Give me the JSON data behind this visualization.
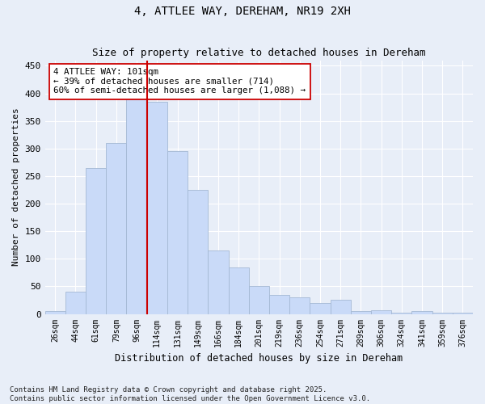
{
  "title": "4, ATTLEE WAY, DEREHAM, NR19 2XH",
  "subtitle": "Size of property relative to detached houses in Dereham",
  "xlabel": "Distribution of detached houses by size in Dereham",
  "ylabel": "Number of detached properties",
  "categories": [
    "26sqm",
    "44sqm",
    "61sqm",
    "79sqm",
    "96sqm",
    "114sqm",
    "131sqm",
    "149sqm",
    "166sqm",
    "184sqm",
    "201sqm",
    "219sqm",
    "236sqm",
    "254sqm",
    "271sqm",
    "289sqm",
    "306sqm",
    "324sqm",
    "341sqm",
    "359sqm",
    "376sqm"
  ],
  "values": [
    5,
    40,
    265,
    310,
    390,
    385,
    295,
    225,
    115,
    85,
    50,
    35,
    30,
    20,
    25,
    5,
    6,
    2,
    5,
    3,
    2
  ],
  "bar_color": "#c9daf8",
  "bar_edge_color": "#a4b8d4",
  "vline_x": 4.5,
  "vline_color": "#cc0000",
  "annotation_text": "4 ATTLEE WAY: 101sqm\n← 39% of detached houses are smaller (714)\n60% of semi-detached houses are larger (1,088) →",
  "annotation_box_color": "#ffffff",
  "annotation_box_edge": "#cc0000",
  "ylim": [
    0,
    460
  ],
  "yticks": [
    0,
    50,
    100,
    150,
    200,
    250,
    300,
    350,
    400,
    450
  ],
  "bg_color": "#e8eef8",
  "grid_color": "#ffffff",
  "title_fontsize": 10,
  "subtitle_fontsize": 9,
  "footnote": "Contains HM Land Registry data © Crown copyright and database right 2025.\nContains public sector information licensed under the Open Government Licence v3.0."
}
